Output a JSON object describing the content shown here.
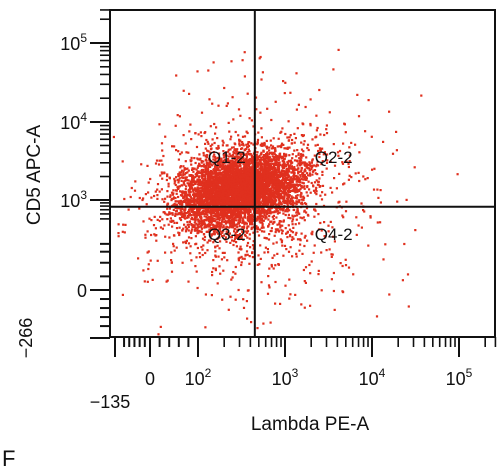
{
  "panel_label": "F",
  "colors": {
    "dots": "#e0301e",
    "axes": "#111111",
    "background": "#ffffff"
  },
  "chart_data": {
    "type": "scatter",
    "xlabel": "Lambda PE-A",
    "ylabel": "CD5 APC-A",
    "x_scale": "biexponential",
    "y_scale": "biexponential",
    "xlim": [
      -135,
      262144
    ],
    "ylim": [
      -266,
      262144
    ],
    "x_ticks": [
      {
        "value": -135,
        "label": "−135"
      },
      {
        "value": 0,
        "label": "0"
      },
      {
        "value": 100,
        "label": "10",
        "exp": "2"
      },
      {
        "value": 1000,
        "label": "10",
        "exp": "3"
      },
      {
        "value": 10000,
        "label": "10",
        "exp": "4"
      },
      {
        "value": 100000,
        "label": "10",
        "exp": "5"
      }
    ],
    "y_ticks": [
      {
        "value": -266,
        "label": "−266"
      },
      {
        "value": 0,
        "label": "0"
      },
      {
        "value": 1000,
        "label": "10",
        "exp": "3"
      },
      {
        "value": 10000,
        "label": "10",
        "exp": "4"
      },
      {
        "value": 100000,
        "label": "10",
        "exp": "5"
      }
    ],
    "gates": {
      "x_threshold": 450,
      "y_threshold": 780
    },
    "quadrants": [
      {
        "name": "Q1-2",
        "x": 130,
        "y": 3000
      },
      {
        "name": "Q2-2",
        "x": 2200,
        "y": 3000
      },
      {
        "name": "Q3-2",
        "x": 130,
        "y": 230
      },
      {
        "name": "Q4-2",
        "x": 2200,
        "y": 230
      }
    ],
    "population": {
      "center": {
        "x": 300,
        "y": 1400
      },
      "point_count": 6500
    },
    "grid": false,
    "legend": "none"
  }
}
